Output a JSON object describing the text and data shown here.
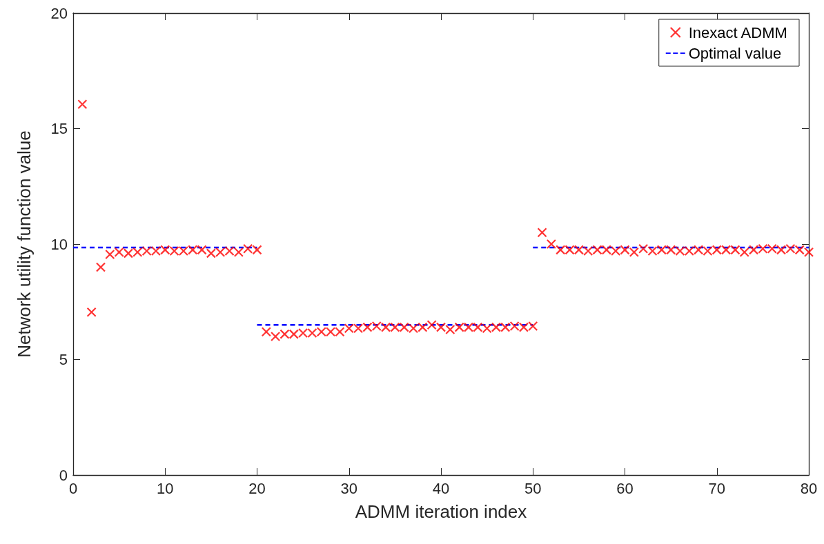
{
  "chart_data": {
    "type": "scatter",
    "xlabel": "ADMM iteration index",
    "ylabel": "Network utility function value",
    "xlim": [
      0,
      80
    ],
    "xticks": [
      0,
      10,
      20,
      30,
      40,
      50,
      60,
      70,
      80
    ],
    "ylim": [
      0,
      20
    ],
    "yticks": [
      0,
      5,
      10,
      15,
      20
    ],
    "grid": false,
    "legend": "top right",
    "series": [
      {
        "name": "Inexact ADMM",
        "marker": "cross",
        "color": "#ff0000",
        "x": [
          1,
          2,
          3,
          4,
          5,
          6,
          7,
          8,
          9,
          10,
          11,
          12,
          13,
          14,
          15,
          16,
          17,
          18,
          19,
          20,
          21,
          22,
          23,
          24,
          25,
          26,
          27,
          28,
          29,
          30,
          31,
          32,
          33,
          34,
          35,
          36,
          37,
          38,
          39,
          40,
          41,
          42,
          43,
          44,
          45,
          46,
          47,
          48,
          49,
          50,
          51,
          52,
          53,
          54,
          55,
          56,
          57,
          58,
          59,
          60,
          61,
          62,
          63,
          64,
          65,
          66,
          67,
          68,
          69,
          70,
          71,
          72,
          73,
          74,
          75,
          76,
          77,
          78,
          79,
          80
        ],
        "values": [
          16.05,
          7.05,
          9.0,
          9.55,
          9.65,
          9.6,
          9.65,
          9.7,
          9.7,
          9.75,
          9.7,
          9.7,
          9.75,
          9.75,
          9.6,
          9.65,
          9.7,
          9.65,
          9.8,
          9.75,
          6.2,
          6.0,
          6.1,
          6.1,
          6.15,
          6.15,
          6.2,
          6.2,
          6.2,
          6.35,
          6.35,
          6.4,
          6.45,
          6.4,
          6.4,
          6.4,
          6.35,
          6.4,
          6.5,
          6.4,
          6.3,
          6.4,
          6.4,
          6.4,
          6.35,
          6.4,
          6.4,
          6.45,
          6.4,
          6.45,
          10.5,
          10.0,
          9.75,
          9.75,
          9.75,
          9.7,
          9.75,
          9.75,
          9.7,
          9.75,
          9.65,
          9.8,
          9.7,
          9.75,
          9.75,
          9.7,
          9.7,
          9.75,
          9.7,
          9.75,
          9.75,
          9.75,
          9.65,
          9.75,
          9.8,
          9.8,
          9.75,
          9.8,
          9.75,
          9.65
        ]
      },
      {
        "name": "Optimal value",
        "type": "line",
        "marker": "none",
        "line_style": "dashed",
        "color": "#0000ff",
        "x": [
          0,
          20
        ],
        "values": [
          9.85,
          9.85
        ]
      },
      {
        "type": "line",
        "marker": "none",
        "line_style": "dashed",
        "color": "#0000ff",
        "x": [
          20,
          50
        ],
        "values": [
          6.5,
          6.5
        ]
      },
      {
        "type": "line",
        "marker": "none",
        "line_style": "dashed",
        "color": "#0000ff",
        "x": [
          50,
          80
        ],
        "values": [
          9.85,
          9.85
        ]
      }
    ]
  }
}
